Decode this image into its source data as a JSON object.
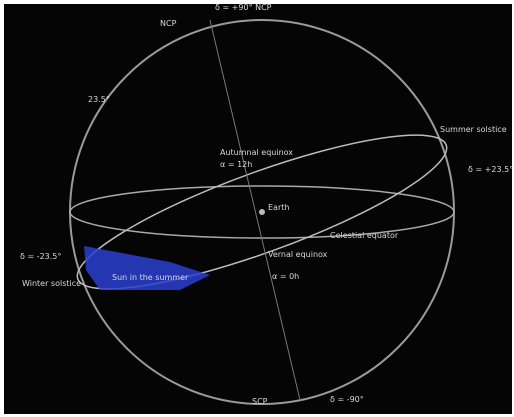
{
  "labels": [
    {
      "text": "δ = +90° NCP"
    },
    {
      "text": "NCP"
    },
    {
      "text": "23.5°"
    },
    {
      "text": "Autumnal equinox"
    },
    {
      "text": "α = 12h"
    },
    {
      "text": "Summer solstice"
    },
    {
      "text": "δ = +23.5°"
    },
    {
      "text": "Earth"
    },
    {
      "text": "Celestial equator"
    },
    {
      "text": "Vernal equinox"
    },
    {
      "text": "α = 0h"
    },
    {
      "text": "δ = -23.5°"
    },
    {
      "text": "Winter solstice"
    },
    {
      "text": "Sun in the summer"
    },
    {
      "text": "SCP"
    },
    {
      "text": "δ = -90°"
    }
  ]
}
